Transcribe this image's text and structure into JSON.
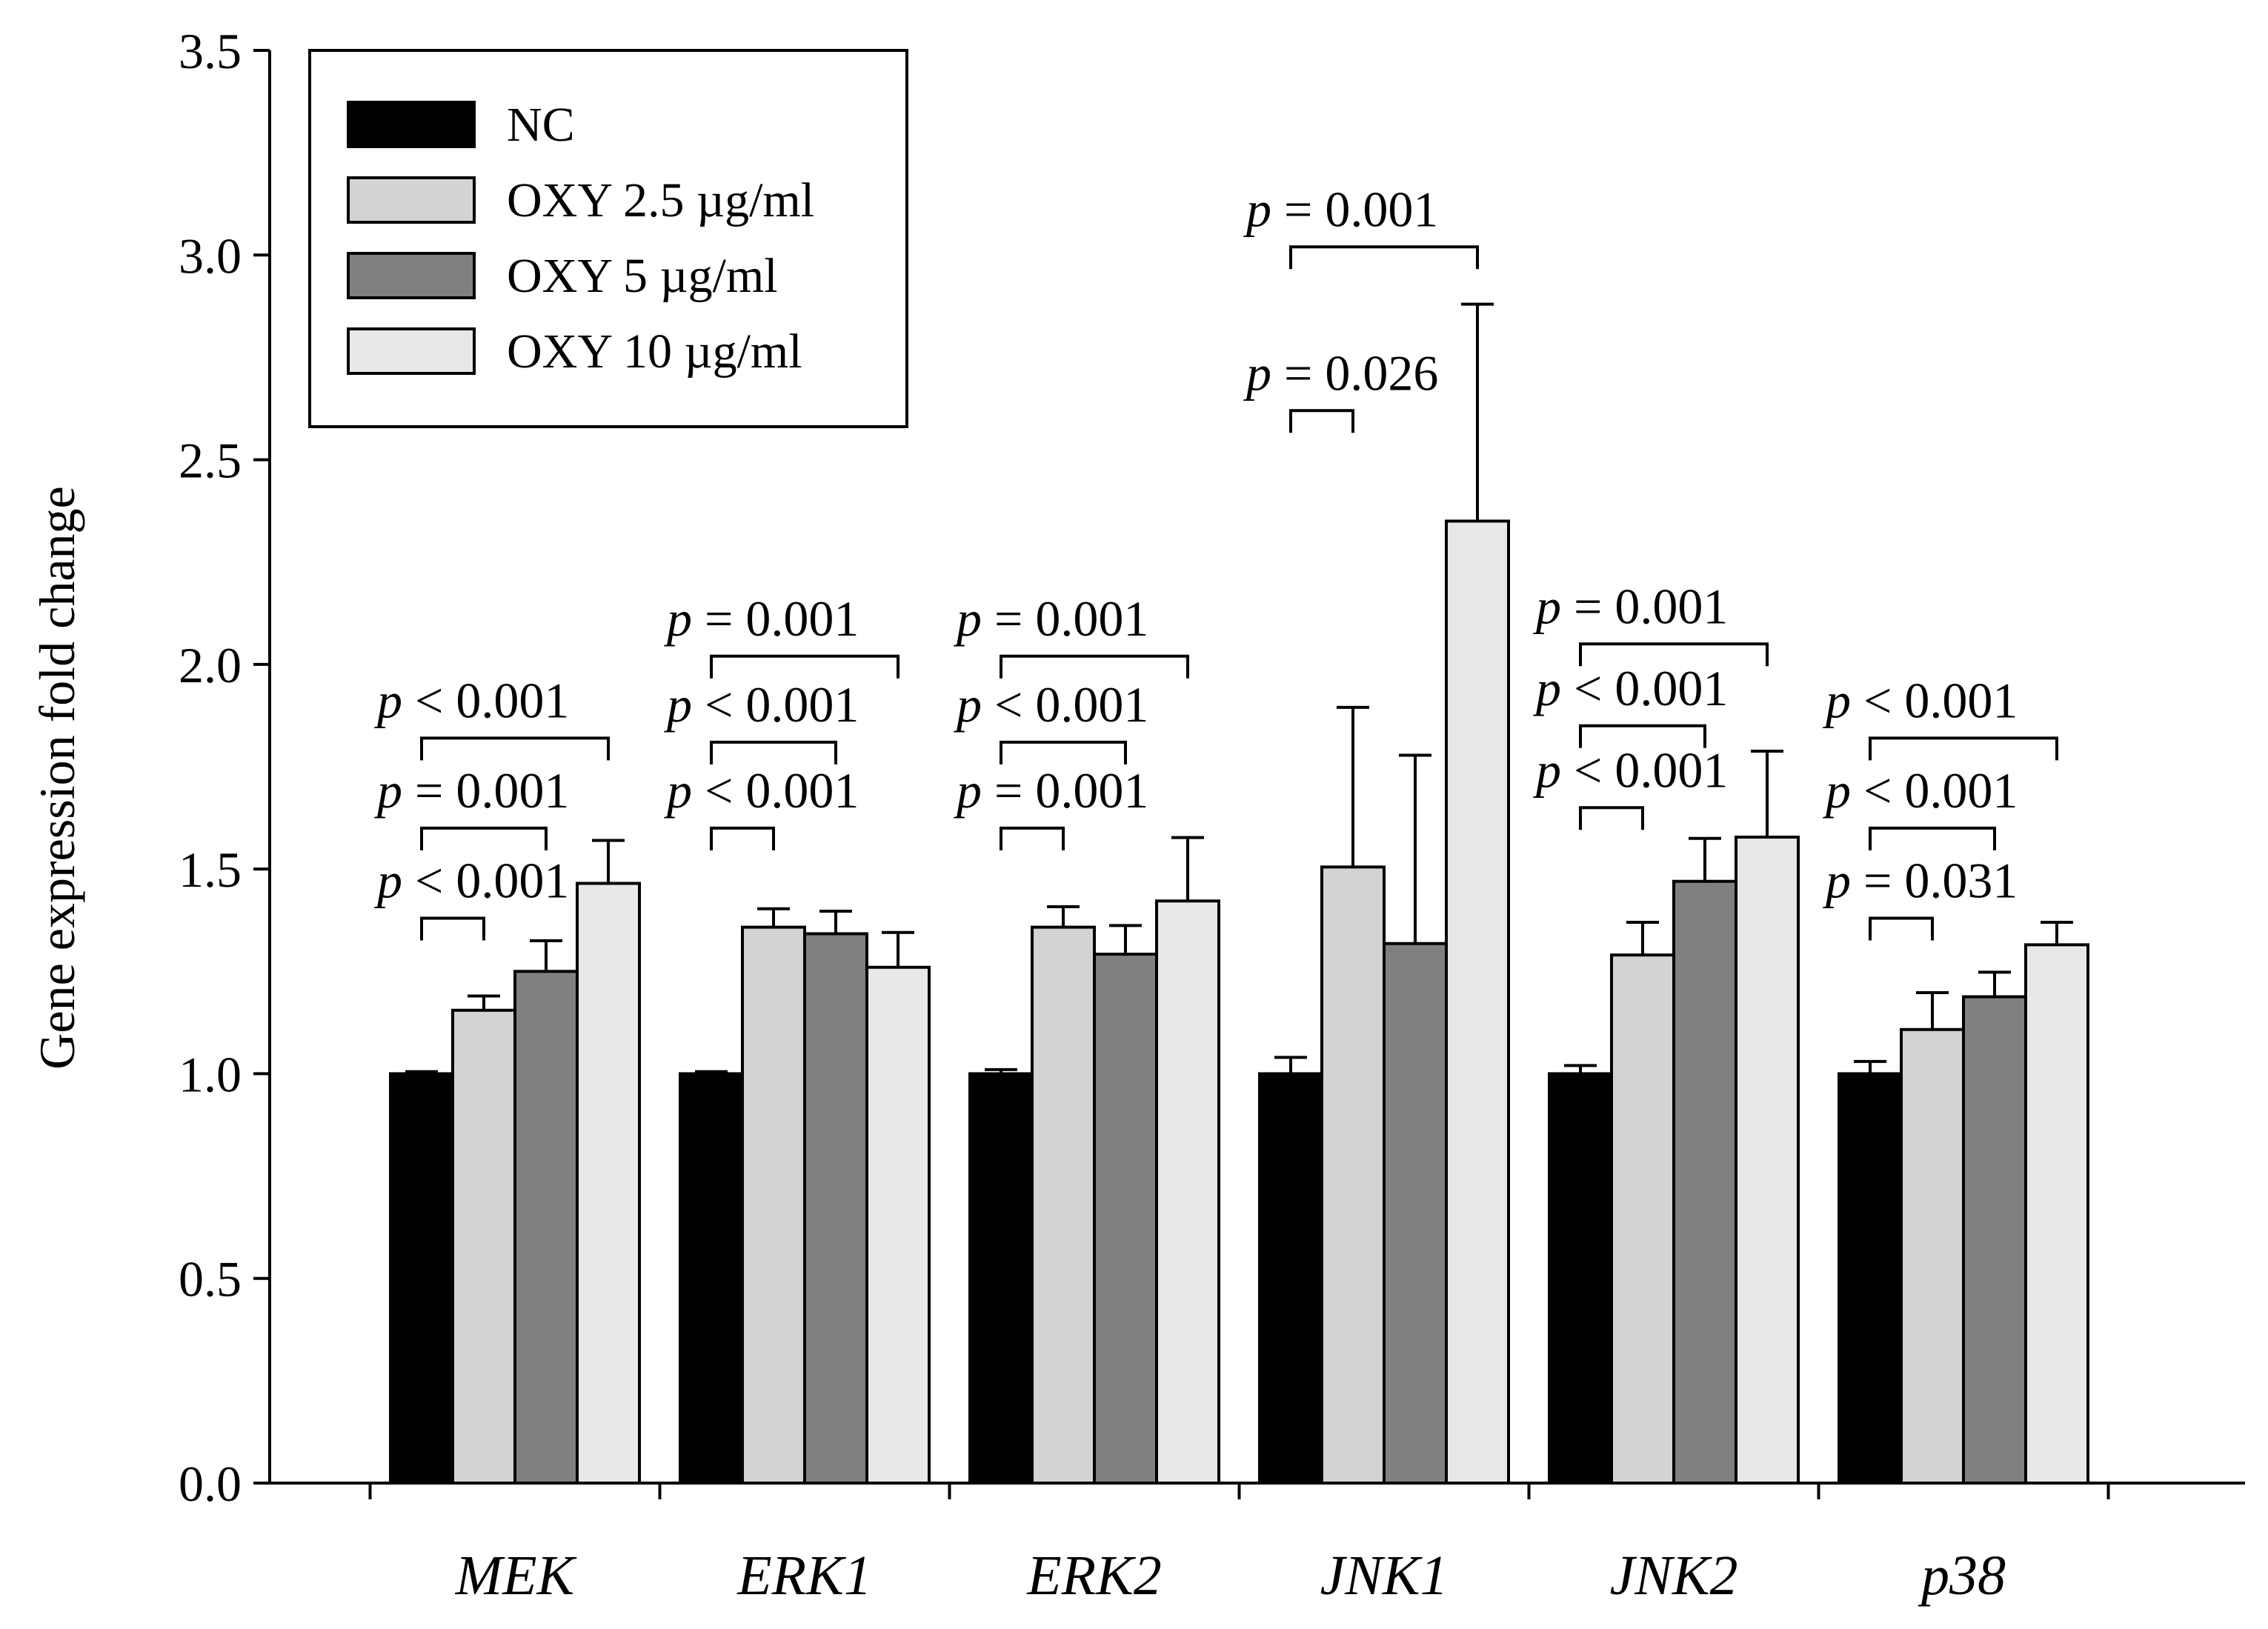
{
  "chart_data": {
    "type": "bar",
    "ylabel": "Gene expression fold change",
    "xlabel": "",
    "ylim": [
      0,
      3.5
    ],
    "yticks": [
      "0.0",
      "0.5",
      "1.0",
      "1.5",
      "2.0",
      "2.5",
      "3.0",
      "3.5"
    ],
    "ytick_values": [
      0,
      0.5,
      1.0,
      1.5,
      2.0,
      2.5,
      3.0,
      3.5
    ],
    "categories": [
      "MEK",
      "ERK1",
      "ERK2",
      "JNK1",
      "JNK2",
      "p38"
    ],
    "series": [
      {
        "name": "NC",
        "color": "#000000",
        "values": [
          1.0,
          1.0,
          1.0,
          1.0,
          1.0,
          1.0
        ],
        "errors": [
          0.005,
          0.005,
          0.01,
          0.04,
          0.02,
          0.03
        ]
      },
      {
        "name": "OXY 2.5 µg/ml",
        "color": "#d3d3d3",
        "values": [
          1.155,
          1.358,
          1.358,
          1.505,
          1.29,
          1.108
        ],
        "errors": [
          0.035,
          0.045,
          0.05,
          0.39,
          0.08,
          0.09
        ]
      },
      {
        "name": "OXY 5 µg/ml",
        "color": "#808080",
        "values": [
          1.25,
          1.342,
          1.292,
          1.318,
          1.47,
          1.188
        ],
        "errors": [
          0.075,
          0.055,
          0.07,
          0.46,
          0.105,
          0.06
        ]
      },
      {
        "name": "OXY 10 µg/ml",
        "color": "#e8e8e8",
        "values": [
          1.465,
          1.26,
          1.422,
          2.35,
          1.578,
          1.315
        ],
        "errors": [
          0.105,
          0.085,
          0.155,
          0.53,
          0.21,
          0.055
        ]
      }
    ],
    "legend": {
      "placement": "top-left",
      "entries": [
        "NC",
        "OXY 2.5 µg/ml",
        "OXY 5 µg/ml",
        "OXY 10 µg/ml"
      ]
    },
    "annotations": [
      {
        "category": "MEK",
        "from": 0,
        "to": 1,
        "level": 1.38,
        "text_level": 1.47,
        "p": "p",
        "text": " < 0.001"
      },
      {
        "category": "MEK",
        "from": 0,
        "to": 2,
        "level": 1.6,
        "text_level": 1.69,
        "p": "p",
        "text": " = 0.001"
      },
      {
        "category": "MEK",
        "from": 0,
        "to": 3,
        "level": 1.82,
        "text_level": 1.91,
        "p": "p",
        "text": " < 0.001"
      },
      {
        "category": "ERK1",
        "from": 0,
        "to": 1,
        "level": 1.6,
        "text_level": 1.69,
        "p": "p",
        "text": " < 0.001"
      },
      {
        "category": "ERK1",
        "from": 0,
        "to": 2,
        "level": 1.81,
        "text_level": 1.9,
        "p": "p",
        "text": " < 0.001"
      },
      {
        "category": "ERK1",
        "from": 0,
        "to": 3,
        "level": 2.02,
        "text_level": 2.11,
        "p": "p",
        "text": " = 0.001"
      },
      {
        "category": "ERK2",
        "from": 0,
        "to": 1,
        "level": 1.6,
        "text_level": 1.69,
        "p": "p",
        "text": " = 0.001"
      },
      {
        "category": "ERK2",
        "from": 0,
        "to": 2,
        "level": 1.81,
        "text_level": 1.9,
        "p": "p",
        "text": " < 0.001"
      },
      {
        "category": "ERK2",
        "from": 0,
        "to": 3,
        "level": 2.02,
        "text_level": 2.11,
        "p": "p",
        "text": " = 0.001"
      },
      {
        "category": "JNK1",
        "from": 0,
        "to": 1,
        "level": 2.62,
        "text_level": 2.71,
        "p": "p",
        "text": " = 0.026"
      },
      {
        "category": "JNK1",
        "from": 0,
        "to": 3,
        "level": 3.02,
        "text_level": 3.11,
        "p": "p",
        "text": " = 0.001"
      },
      {
        "category": "JNK2",
        "from": 0,
        "to": 1,
        "level": 1.65,
        "text_level": 1.74,
        "p": "p",
        "text": " < 0.001"
      },
      {
        "category": "JNK2",
        "from": 0,
        "to": 2,
        "level": 1.85,
        "text_level": 1.94,
        "p": "p",
        "text": " < 0.001"
      },
      {
        "category": "JNK2",
        "from": 0,
        "to": 3,
        "level": 2.05,
        "text_level": 2.14,
        "p": "p",
        "text": " = 0.001"
      },
      {
        "category": "p38",
        "from": 0,
        "to": 1,
        "level": 1.38,
        "text_level": 1.47,
        "p": "p",
        "text": " = 0.031"
      },
      {
        "category": "p38",
        "from": 0,
        "to": 2,
        "level": 1.6,
        "text_level": 1.69,
        "p": "p",
        "text": " < 0.001"
      },
      {
        "category": "p38",
        "from": 0,
        "to": 3,
        "level": 1.82,
        "text_level": 1.91,
        "p": "p",
        "text": " < 0.001"
      }
    ],
    "grid": false
  }
}
